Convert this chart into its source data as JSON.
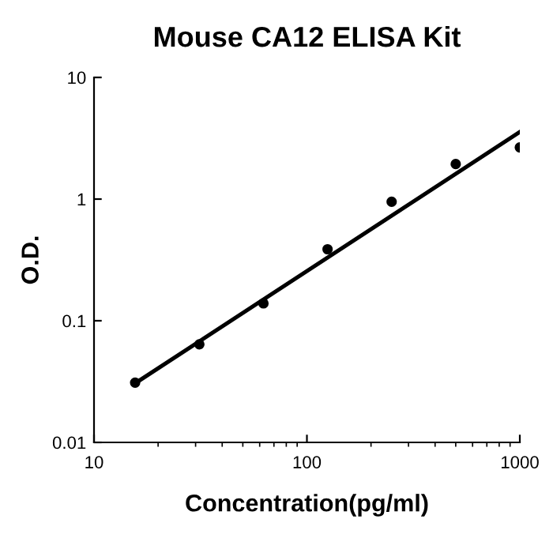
{
  "chart_data": {
    "type": "scatter",
    "title": "Mouse CA12 ELISA Kit",
    "xlabel": "Concentration(pg/ml)",
    "ylabel": "O.D.",
    "log": "xy",
    "xlim": [
      10,
      1000
    ],
    "ylim": [
      0.01,
      10
    ],
    "xticks": [
      10,
      100,
      1000
    ],
    "yticks": [
      0.01,
      0.1,
      1,
      10
    ],
    "grid": false,
    "legend": false,
    "series": [
      {
        "color": "#000000",
        "marker": "circle",
        "x": [
          15.6,
          31.25,
          62.5,
          125,
          250,
          500,
          1000
        ],
        "values": [
          0.031,
          0.064,
          0.139,
          0.387,
          0.95,
          1.94,
          2.66
        ]
      },
      {
        "type": "line",
        "color": "#000000",
        "marker": "none",
        "line_style": "solid",
        "x": [
          15.6,
          1000
        ],
        "values": [
          0.0306,
          3.56
        ]
      }
    ]
  }
}
